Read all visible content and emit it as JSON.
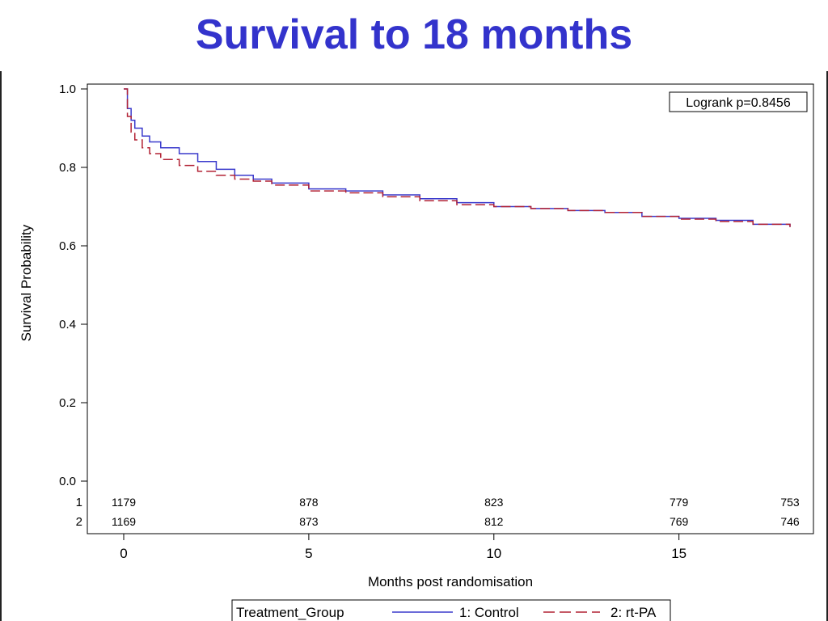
{
  "slide": {
    "title": "Survival to 18 months"
  },
  "colors": {
    "title": "#3333cc",
    "control": "#3a3acc",
    "rtpa": "#b22234"
  },
  "chart_data": {
    "type": "line",
    "title": "",
    "xlabel": "Months post randomisation",
    "ylabel": "Survival Probability",
    "xlim": [
      0,
      18
    ],
    "ylim": [
      0,
      1.0
    ],
    "x_ticks": [
      0,
      5,
      10,
      15
    ],
    "y_ticks": [
      "0.0",
      "0.2",
      "0.4",
      "0.6",
      "0.8",
      "1.0"
    ],
    "grid": false,
    "annotation": "Logrank p=0.8456",
    "legend": {
      "title": "Treatment_Group",
      "position": "bottom",
      "entries": [
        "1: Control",
        "2: rt-PA"
      ]
    },
    "series": [
      {
        "name": "1: Control",
        "style": "solid",
        "x": [
          0,
          0.1,
          0.2,
          0.3,
          0.5,
          0.7,
          1.0,
          1.5,
          2.0,
          2.5,
          3.0,
          3.5,
          4.0,
          5.0,
          6.0,
          7.0,
          8.0,
          9.0,
          10.0,
          11.0,
          12.0,
          13.0,
          14.0,
          15.0,
          16.0,
          17.0,
          18.0
        ],
        "y": [
          1.0,
          0.95,
          0.92,
          0.9,
          0.88,
          0.865,
          0.85,
          0.835,
          0.815,
          0.795,
          0.78,
          0.77,
          0.76,
          0.745,
          0.74,
          0.73,
          0.72,
          0.71,
          0.7,
          0.695,
          0.69,
          0.685,
          0.675,
          0.67,
          0.665,
          0.655,
          0.648
        ]
      },
      {
        "name": "2: rt-PA",
        "style": "dashed",
        "x": [
          0,
          0.1,
          0.2,
          0.3,
          0.5,
          0.7,
          1.0,
          1.5,
          2.0,
          2.5,
          3.0,
          3.5,
          4.0,
          5.0,
          6.0,
          7.0,
          8.0,
          9.0,
          10.0,
          11.0,
          12.0,
          13.0,
          14.0,
          15.0,
          16.0,
          17.0,
          18.0
        ],
        "y": [
          1.0,
          0.93,
          0.89,
          0.87,
          0.85,
          0.835,
          0.82,
          0.805,
          0.79,
          0.78,
          0.77,
          0.765,
          0.755,
          0.74,
          0.735,
          0.725,
          0.715,
          0.705,
          0.7,
          0.695,
          0.69,
          0.685,
          0.675,
          0.668,
          0.662,
          0.655,
          0.648
        ]
      }
    ],
    "at_risk": {
      "x": [
        0,
        5,
        10,
        15,
        18
      ],
      "rows": [
        {
          "label": "1",
          "values": [
            "1179",
            "878",
            "823",
            "779",
            "753"
          ]
        },
        {
          "label": "2",
          "values": [
            "1169",
            "873",
            "812",
            "769",
            "746"
          ]
        }
      ]
    }
  }
}
